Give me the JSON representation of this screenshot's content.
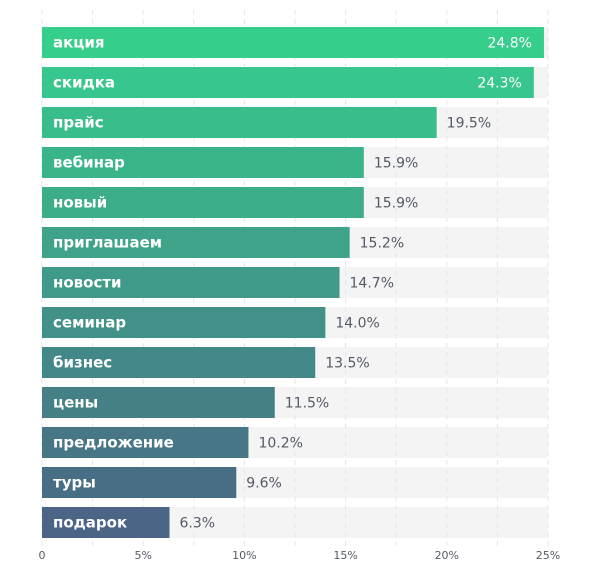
{
  "chart_data": {
    "type": "bar",
    "orientation": "horizontal",
    "categories": [
      "акция",
      "скидка",
      "прайс",
      "вебинар",
      "новый",
      "приглашаем",
      "новости",
      "семинар",
      "бизнес",
      "цены",
      "предложение",
      "туры",
      "подарок"
    ],
    "values": [
      24.8,
      24.3,
      19.5,
      15.9,
      15.9,
      15.2,
      14.7,
      14.0,
      13.5,
      11.5,
      10.2,
      9.6,
      6.3
    ],
    "value_labels": [
      "24.8%",
      "24.3%",
      "19.5%",
      "15.9%",
      "15.9%",
      "15.2%",
      "14.7%",
      "14.0%",
      "13.5%",
      "11.5%",
      "10.2%",
      "9.6%",
      "6.3%"
    ],
    "xlim": [
      0,
      25
    ],
    "x_ticks": [
      0,
      5,
      10,
      15,
      20,
      25
    ],
    "x_tick_labels": [
      "0",
      "5%",
      "10%",
      "15%",
      "20%",
      "25%"
    ],
    "grid": true,
    "title": "",
    "xlabel": "",
    "ylabel": "",
    "colors": {
      "top": "#35cf8b",
      "bottom": "#4a6586",
      "track": "#f4f4f5",
      "grid": "#e4e6ea",
      "value_text_outside": "#555a66",
      "value_text_inside": "#ffffff"
    }
  }
}
